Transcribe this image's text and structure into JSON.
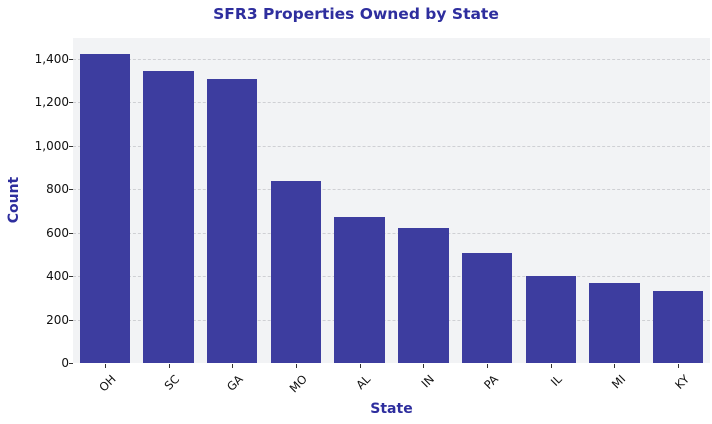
{
  "chart_data": {
    "type": "bar",
    "title": "SFR3 Properties Owned by State",
    "xlabel": "State",
    "ylabel": "Count",
    "categories": [
      "OH",
      "SC",
      "GA",
      "MO",
      "AL",
      "IN",
      "PA",
      "IL",
      "MI",
      "KY"
    ],
    "values": [
      1423,
      1345,
      1308,
      838,
      672,
      622,
      507,
      401,
      368,
      332
    ],
    "ylim": [
      0,
      1500
    ],
    "yticks": [
      0,
      200,
      400,
      600,
      800,
      1000,
      1200,
      1400
    ],
    "ytick_labels": [
      "0",
      "200",
      "400",
      "600",
      "800",
      "1,000",
      "1,200",
      "1,400"
    ],
    "grid": "y, dashed",
    "legend": "none",
    "colors": {
      "bar": "#3d3d9f",
      "title": "#2e2e9e",
      "plot_bg": "#f2f3f5"
    }
  },
  "title": "SFR3 Properties Owned by State",
  "xlabel": "State",
  "ylabel": "Count"
}
